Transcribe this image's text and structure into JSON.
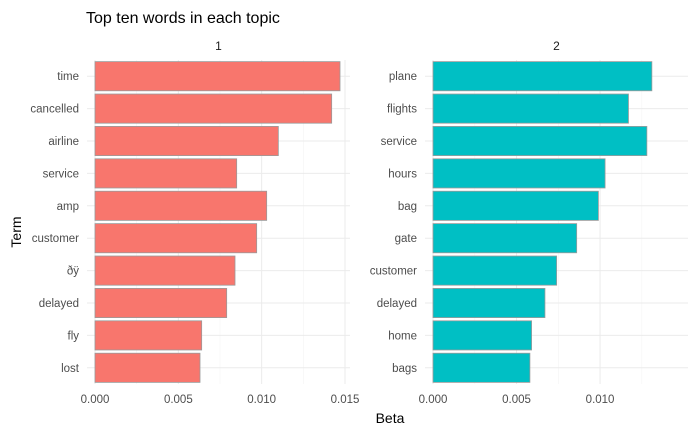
{
  "chart_data": {
    "type": "bar",
    "orientation": "horizontal",
    "title": "Top ten words in each topic",
    "xlabel": "Beta",
    "ylabel": "Term",
    "grid": true,
    "legend": "none",
    "panels": [
      {
        "name": "1",
        "color": "#F8766D",
        "xlim": [
          0,
          0.0148
        ],
        "xticks": [
          0,
          0.005,
          0.01,
          0.015
        ],
        "xtick_labels": [
          "0.000",
          "0.005",
          "0.010",
          "0.015"
        ],
        "categories": [
          "time",
          "cancelled",
          "airline",
          "service",
          "amp",
          "customer",
          "ðÿ",
          "delayed",
          "fly",
          "lost"
        ],
        "values": [
          0.0147,
          0.0142,
          0.011,
          0.0085,
          0.0103,
          0.0097,
          0.0084,
          0.0079,
          0.0064,
          0.0063
        ]
      },
      {
        "name": "2",
        "color": "#00BFC4",
        "xlim": [
          0,
          0.0132
        ],
        "xticks": [
          0,
          0.005,
          0.01
        ],
        "xtick_labels": [
          "0.000",
          "0.005",
          "0.010"
        ],
        "categories": [
          "plane",
          "flights",
          "service",
          "hours",
          "bag",
          "gate",
          "customer",
          "delayed",
          "home",
          "bags"
        ],
        "values": [
          0.0131,
          0.0117,
          0.0128,
          0.0103,
          0.0099,
          0.0086,
          0.0074,
          0.0067,
          0.0059,
          0.0058
        ]
      }
    ]
  }
}
